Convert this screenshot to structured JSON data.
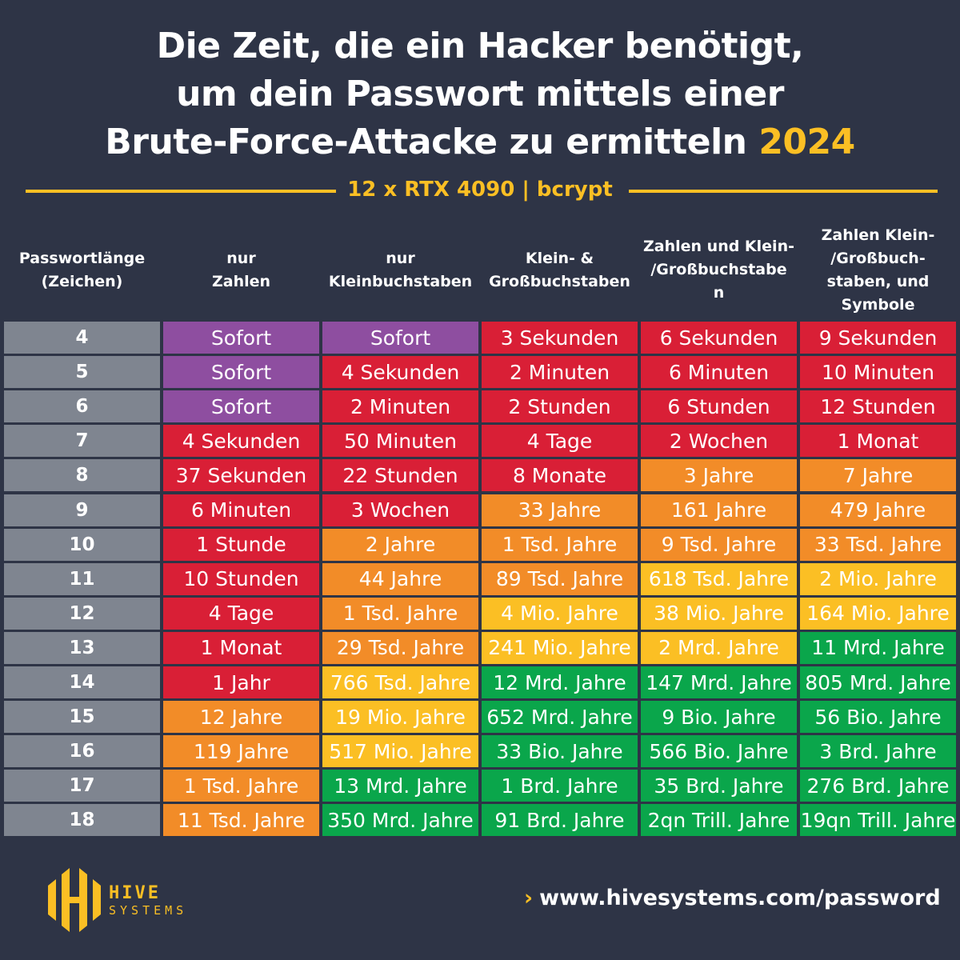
{
  "title": {
    "line1": "Die Zeit, die ein Hacker benötigt,",
    "line2": "um dein Passwort mittels einer",
    "line3": "Brute-Force-Attacke zu ermitteln",
    "year": "2024"
  },
  "subtitle": "12 x RTX 4090 | bcrypt",
  "colors": {
    "background": "#2e3446",
    "accent": "#fbbf24",
    "length": "#7f8590",
    "P": "#8e4ea0",
    "R": "#d91f36",
    "O": "#f28c28",
    "Y": "#fbbf24",
    "G": "#0aa64b"
  },
  "chart_data": {
    "type": "table",
    "columns": [
      "Passwortlänge (Zeichen)",
      "nur Zahlen",
      "nur Kleinbuchstaben",
      "Klein- & Großbuchstaben",
      "Zahlen und Klein-/Großbuchstaben",
      "Zahlen Klein-/Großbuchstaben, und Symbole"
    ],
    "rows": [
      {
        "length": "4",
        "values": [
          "Sofort",
          "Sofort",
          "3 Sekunden",
          "6 Sekunden",
          "9 Sekunden"
        ],
        "levels": [
          "P",
          "P",
          "R",
          "R",
          "R"
        ]
      },
      {
        "length": "5",
        "values": [
          "Sofort",
          "4 Sekunden",
          "2 Minuten",
          "6 Minuten",
          "10 Minuten"
        ],
        "levels": [
          "P",
          "R",
          "R",
          "R",
          "R"
        ]
      },
      {
        "length": "6",
        "values": [
          "Sofort",
          "2 Minuten",
          "2 Stunden",
          "6 Stunden",
          "12 Stunden"
        ],
        "levels": [
          "P",
          "R",
          "R",
          "R",
          "R"
        ]
      },
      {
        "length": "7",
        "values": [
          "4 Sekunden",
          "50 Minuten",
          "4 Tage",
          "2 Wochen",
          "1 Monat"
        ],
        "levels": [
          "R",
          "R",
          "R",
          "R",
          "R"
        ]
      },
      {
        "length": "8",
        "values": [
          "37 Sekunden",
          "22 Stunden",
          "8 Monate",
          "3 Jahre",
          "7 Jahre"
        ],
        "levels": [
          "R",
          "R",
          "R",
          "O",
          "O"
        ]
      },
      {
        "length": "9",
        "values": [
          "6 Minuten",
          "3 Wochen",
          "33 Jahre",
          "161 Jahre",
          "479 Jahre"
        ],
        "levels": [
          "R",
          "R",
          "O",
          "O",
          "O"
        ]
      },
      {
        "length": "10",
        "values": [
          "1 Stunde",
          "2 Jahre",
          "1 Tsd. Jahre",
          "9 Tsd. Jahre",
          "33 Tsd. Jahre"
        ],
        "levels": [
          "R",
          "O",
          "O",
          "O",
          "O"
        ]
      },
      {
        "length": "11",
        "values": [
          "10 Stunden",
          "44 Jahre",
          "89 Tsd. Jahre",
          "618 Tsd. Jahre",
          "2 Mio. Jahre"
        ],
        "levels": [
          "R",
          "O",
          "O",
          "Y",
          "Y"
        ]
      },
      {
        "length": "12",
        "values": [
          "4 Tage",
          "1 Tsd. Jahre",
          "4 Mio. Jahre",
          "38 Mio. Jahre",
          "164 Mio. Jahre"
        ],
        "levels": [
          "R",
          "O",
          "Y",
          "Y",
          "Y"
        ]
      },
      {
        "length": "13",
        "values": [
          "1 Monat",
          "29 Tsd. Jahre",
          "241 Mio. Jahre",
          "2 Mrd. Jahre",
          "11 Mrd. Jahre"
        ],
        "levels": [
          "R",
          "O",
          "Y",
          "Y",
          "G"
        ]
      },
      {
        "length": "14",
        "values": [
          "1 Jahr",
          "766 Tsd. Jahre",
          "12 Mrd. Jahre",
          "147 Mrd. Jahre",
          "805 Mrd. Jahre"
        ],
        "levels": [
          "R",
          "Y",
          "G",
          "G",
          "G"
        ]
      },
      {
        "length": "15",
        "values": [
          "12 Jahre",
          "19 Mio. Jahre",
          "652 Mrd. Jahre",
          "9 Bio. Jahre",
          "56 Bio. Jahre"
        ],
        "levels": [
          "O",
          "Y",
          "G",
          "G",
          "G"
        ]
      },
      {
        "length": "16",
        "values": [
          "119 Jahre",
          "517 Mio. Jahre",
          "33 Bio. Jahre",
          "566 Bio. Jahre",
          "3 Brd. Jahre"
        ],
        "levels": [
          "O",
          "Y",
          "G",
          "G",
          "G"
        ]
      },
      {
        "length": "17",
        "values": [
          "1 Tsd. Jahre",
          "13 Mrd. Jahre",
          "1 Brd. Jahre",
          "35 Brd. Jahre",
          "276 Brd. Jahre"
        ],
        "levels": [
          "O",
          "G",
          "G",
          "G",
          "G"
        ]
      },
      {
        "length": "18",
        "values": [
          "11 Tsd. Jahre",
          "350 Mrd. Jahre",
          "91 Brd. Jahre",
          "2qn Trill. Jahre",
          "19qn Trill. Jahre"
        ],
        "levels": [
          "O",
          "G",
          "G",
          "G",
          "G"
        ]
      }
    ]
  },
  "headers": [
    [
      "Passwortlänge",
      "(Zeichen)"
    ],
    [
      "nur",
      "Zahlen"
    ],
    [
      "nur",
      "Kleinbuchstaben"
    ],
    [
      "Klein- &",
      "Großbuchstaben"
    ],
    [
      "Zahlen und Klein-",
      "/Großbuchstabe",
      "n"
    ],
    [
      "Zahlen Klein-",
      "/Großbuch-",
      "staben, und",
      "Symbole"
    ]
  ],
  "logo": {
    "line1": "HIVE",
    "line2": "SYSTEMS"
  },
  "footer": {
    "url": "www.hivesystems.com/password"
  }
}
